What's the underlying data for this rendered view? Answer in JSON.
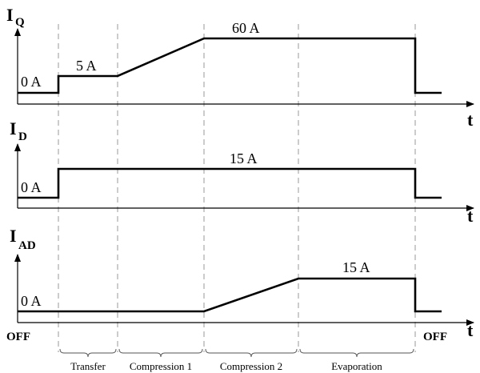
{
  "panels": {
    "iq": {
      "symbol": "I",
      "subscript": "Q",
      "time_label": "t",
      "levels": [
        "0 A",
        "5 A",
        "60 A"
      ]
    },
    "id": {
      "symbol": "I",
      "subscript": "D",
      "time_label": "t",
      "levels": [
        "0 A",
        "15 A"
      ]
    },
    "iad": {
      "symbol": "I",
      "subscript": "AD",
      "time_label": "t",
      "levels": [
        "0 A",
        "15 A"
      ]
    }
  },
  "state_labels": {
    "start": "OFF",
    "end": "OFF"
  },
  "phases": [
    "Transfer",
    "Compression 1",
    "Compression 2",
    "Evaporation"
  ]
}
